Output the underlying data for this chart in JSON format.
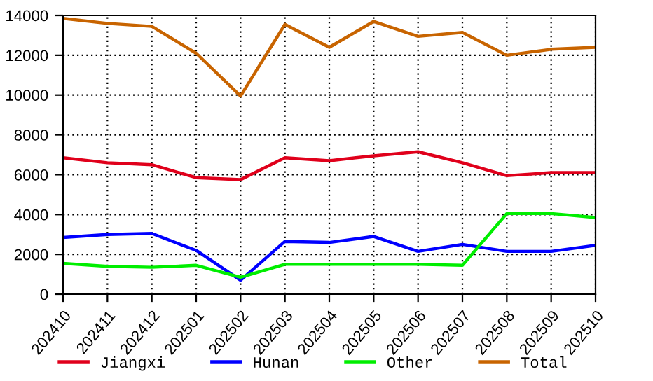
{
  "chart_data": {
    "type": "line",
    "categories": [
      "202410",
      "202411",
      "202412",
      "202501",
      "202502",
      "202503",
      "202504",
      "202505",
      "202506",
      "202507",
      "202508",
      "202509",
      "202510"
    ],
    "series": [
      {
        "name": "Jiangxi",
        "color": "#e0001b",
        "values": [
          6850,
          6600,
          6500,
          5850,
          5750,
          6850,
          6700,
          6950,
          7150,
          6600,
          5950,
          6100,
          6100
        ]
      },
      {
        "name": "Hunan",
        "color": "#0000ff",
        "values": [
          2850,
          3000,
          3050,
          2200,
          700,
          2650,
          2600,
          2900,
          2150,
          2500,
          2150,
          2150,
          2450
        ]
      },
      {
        "name": "Other",
        "color": "#00ee00",
        "values": [
          1550,
          1400,
          1350,
          1450,
          850,
          1500,
          1500,
          1500,
          1500,
          1450,
          4050,
          4050,
          3850
        ]
      },
      {
        "name": "Total",
        "color": "#c86400",
        "values": [
          13850,
          13600,
          13450,
          12100,
          9950,
          13550,
          12400,
          13700,
          12950,
          13150,
          12000,
          12300,
          12400
        ]
      }
    ],
    "ylim": [
      0,
      14000
    ],
    "yticks": [
      0,
      2000,
      4000,
      6000,
      8000,
      10000,
      12000,
      14000
    ],
    "grid": true,
    "legend": "bottom",
    "marker": "none",
    "line_style": "solid"
  }
}
